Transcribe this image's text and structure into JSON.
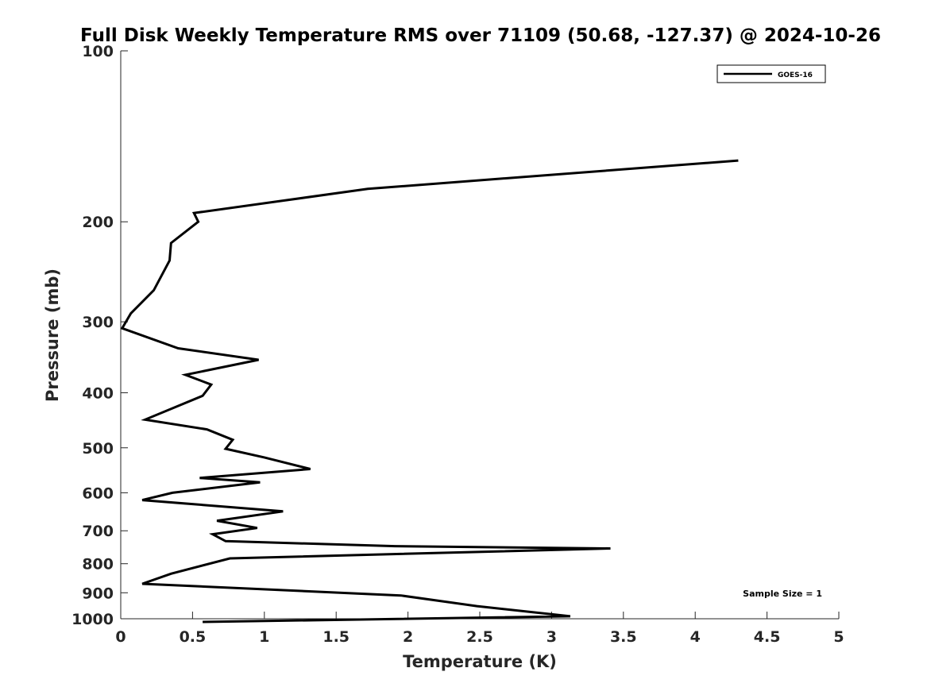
{
  "chart_data": {
    "type": "line",
    "title": "Full Disk Weekly Temperature RMS over 71109 (50.68, -127.37) @ 2024-10-26",
    "xlabel": "Temperature (K)",
    "ylabel": "Pressure (mb)",
    "xlim": [
      0,
      5
    ],
    "ylim": [
      100,
      1000
    ],
    "y_scale": "log",
    "y_reversed": true,
    "grid": false,
    "legend_position": "top-right",
    "x_ticks": [
      "0",
      "0.5",
      "1",
      "1.5",
      "2",
      "2.5",
      "3",
      "3.5",
      "4",
      "4.5",
      "5"
    ],
    "y_ticks": [
      "100",
      "200",
      "300",
      "400",
      "500",
      "600",
      "700",
      "800",
      "900",
      "1000"
    ],
    "annotation": "Sample Size = 1",
    "line_color": "#000000",
    "series": [
      {
        "name": "GOES-16",
        "x": [
          4.3,
          1.72,
          0.51,
          0.54,
          0.35,
          0.34,
          0.23,
          0.07,
          0.01,
          0.4,
          0.96,
          0.45,
          0.63,
          0.57,
          0.17,
          0.6,
          0.78,
          0.73,
          1.0,
          1.32,
          0.55,
          0.97,
          0.36,
          0.15,
          1.13,
          0.67,
          0.95,
          0.64,
          0.73,
          1.91,
          3.41,
          0.76,
          0.35,
          0.15,
          1.95,
          2.48,
          3.13,
          0.57
        ],
        "y": [
          156,
          175,
          193,
          200,
          218,
          234,
          264,
          290,
          308,
          334,
          350,
          372,
          387,
          405,
          446,
          464,
          484,
          502,
          520,
          545,
          565,
          575,
          600,
          618,
          647,
          672,
          692,
          710,
          730,
          745,
          752,
          783,
          833,
          868,
          910,
          950,
          990,
          1013
        ]
      }
    ]
  }
}
